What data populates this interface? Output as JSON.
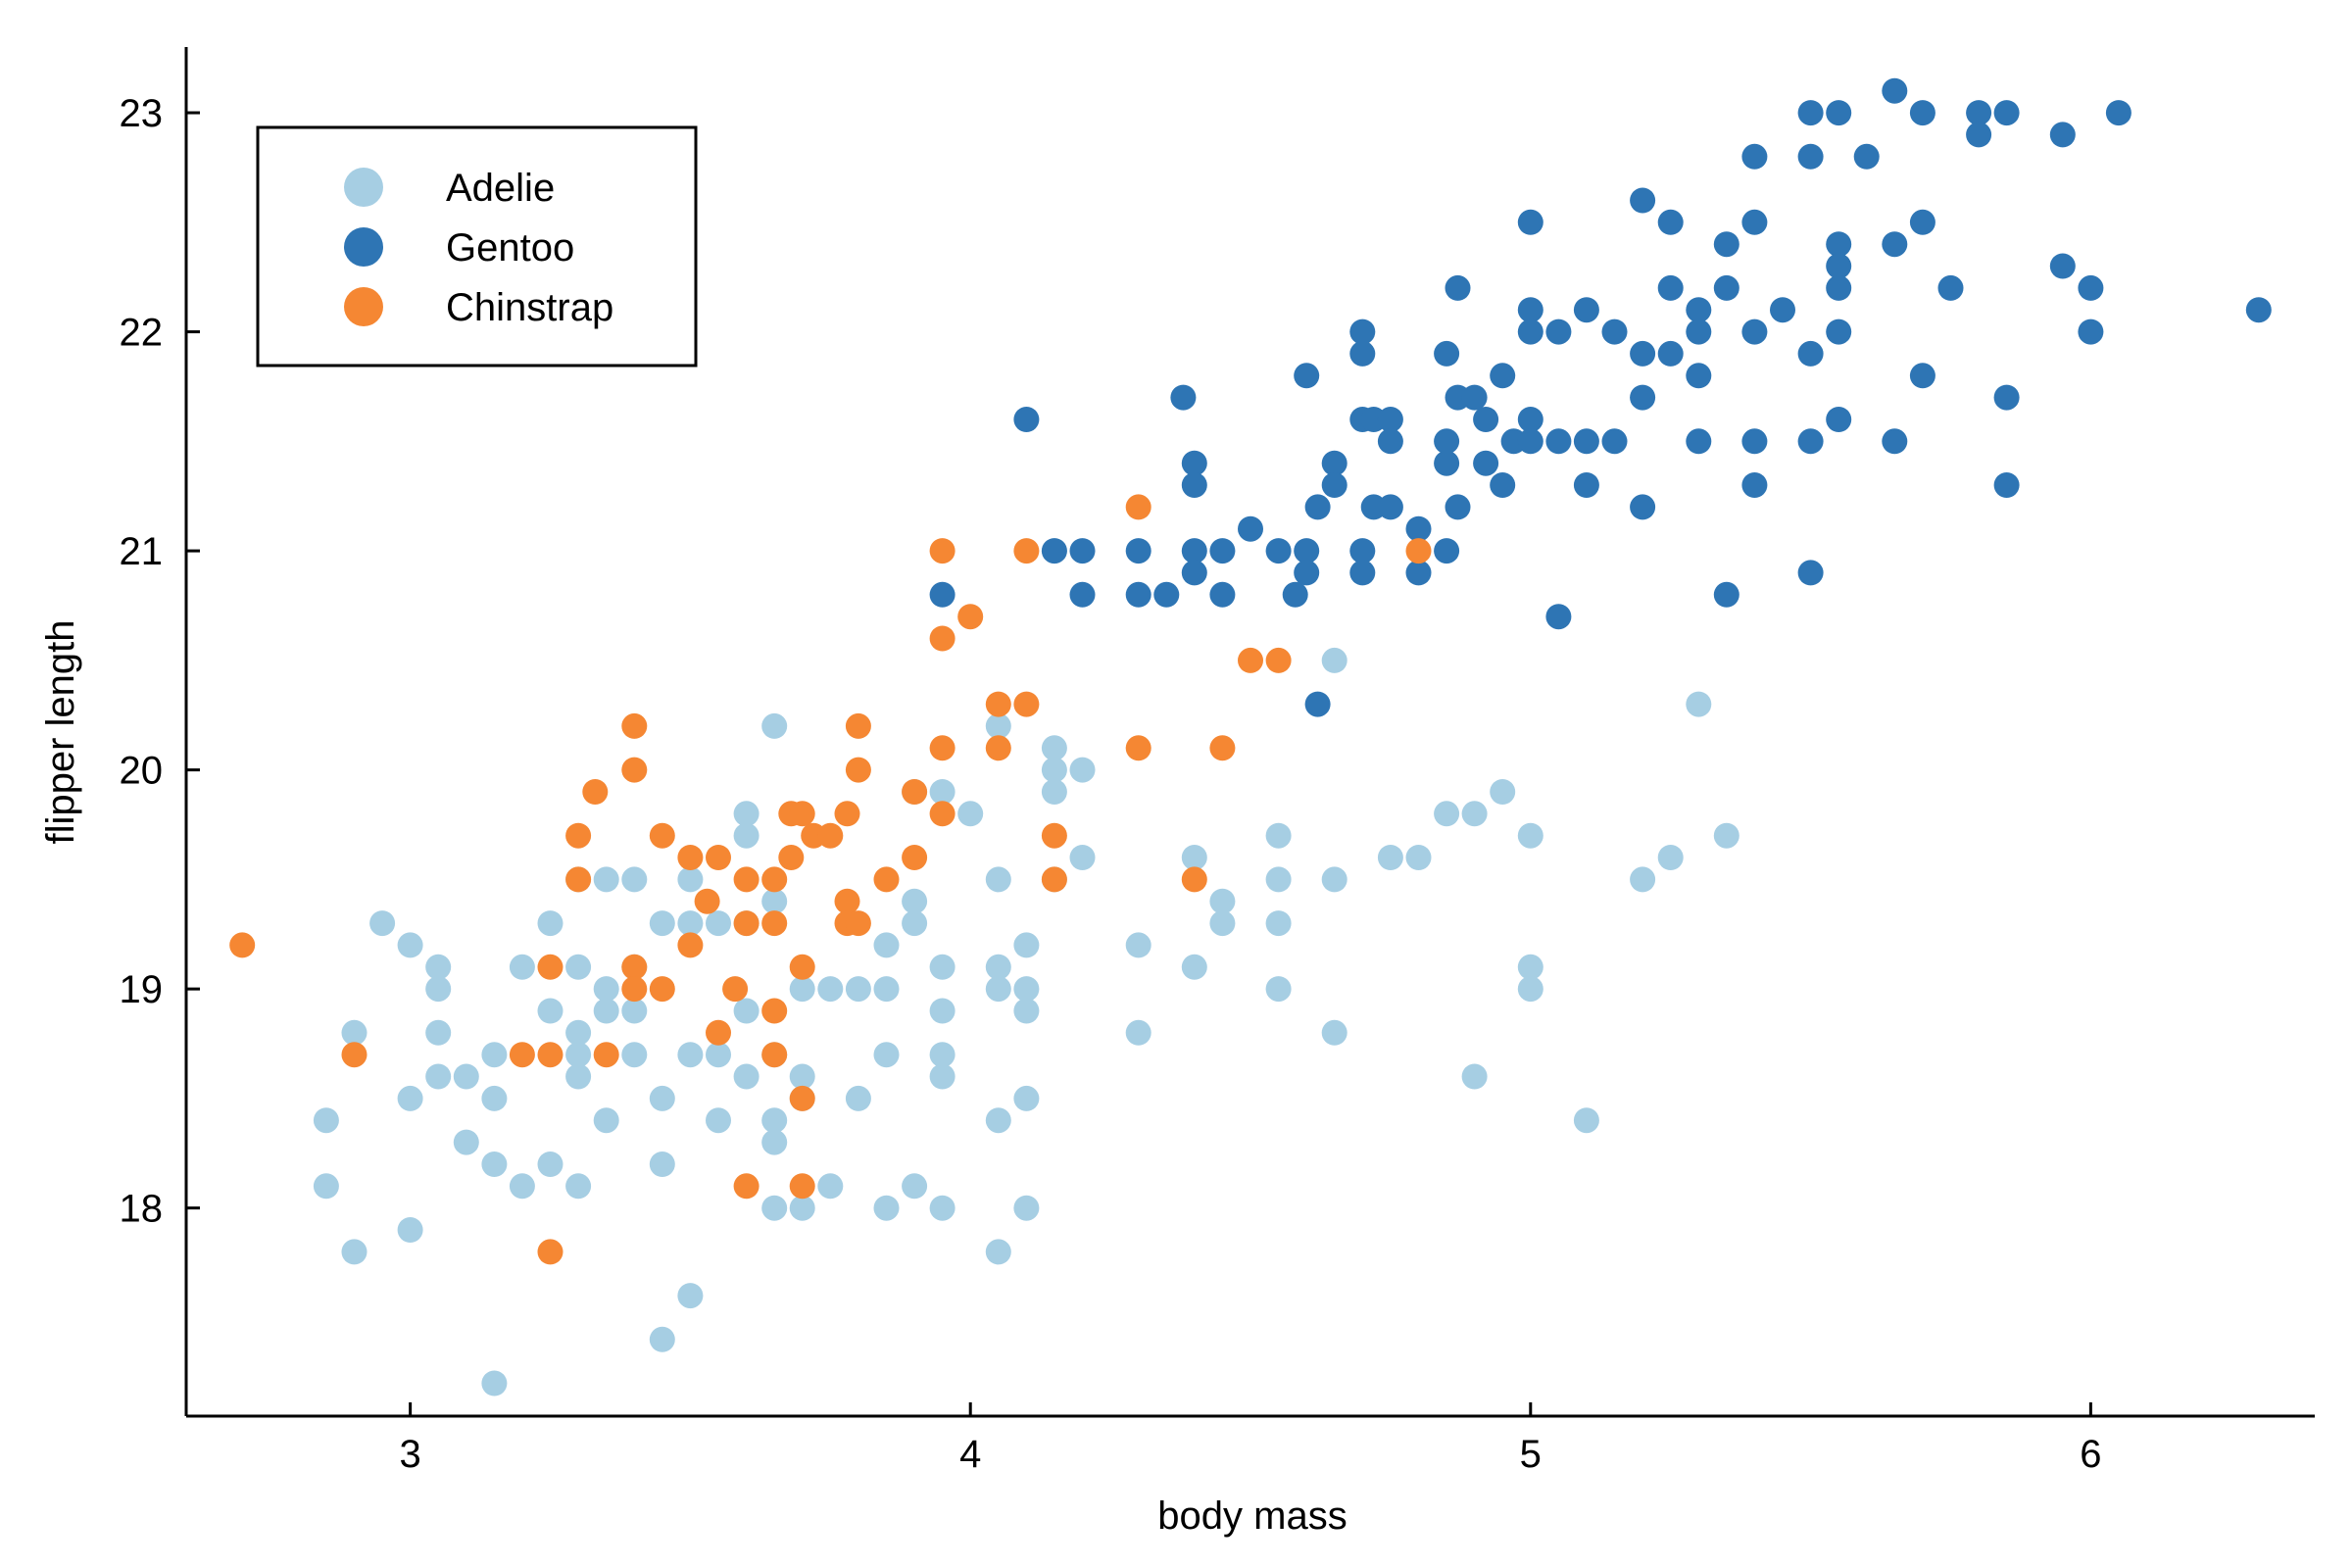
{
  "chart_data": {
    "type": "scatter",
    "xlabel": "body mass",
    "ylabel": "flipper length",
    "xlim": [
      2.6,
      6.4
    ],
    "ylim": [
      17.05,
      23.3
    ],
    "xticks": [
      3,
      4,
      5,
      6
    ],
    "yticks": [
      18,
      19,
      20,
      21,
      22,
      23
    ],
    "grid": false,
    "legend_position": "top-left",
    "series": [
      {
        "name": "Adelie",
        "color": "#a6cee3",
        "points": [
          [
            2.85,
            18.4
          ],
          [
            2.85,
            18.1
          ],
          [
            2.9,
            18.8
          ],
          [
            2.9,
            17.8
          ],
          [
            2.95,
            19.3
          ],
          [
            3.0,
            17.9
          ],
          [
            3.0,
            19.2
          ],
          [
            3.0,
            18.5
          ],
          [
            3.05,
            19.1
          ],
          [
            3.05,
            19.0
          ],
          [
            3.05,
            18.8
          ],
          [
            3.05,
            18.6
          ],
          [
            3.1,
            18.6
          ],
          [
            3.1,
            18.3
          ],
          [
            3.15,
            18.7
          ],
          [
            3.15,
            18.5
          ],
          [
            3.15,
            18.2
          ],
          [
            3.15,
            17.2
          ],
          [
            3.2,
            19.1
          ],
          [
            3.2,
            18.1
          ],
          [
            3.25,
            19.3
          ],
          [
            3.25,
            18.9
          ],
          [
            3.25,
            18.2
          ],
          [
            3.3,
            19.5
          ],
          [
            3.3,
            19.1
          ],
          [
            3.3,
            18.7
          ],
          [
            3.3,
            18.6
          ],
          [
            3.3,
            18.8
          ],
          [
            3.3,
            18.1
          ],
          [
            3.35,
            19.5
          ],
          [
            3.35,
            19.0
          ],
          [
            3.35,
            18.9
          ],
          [
            3.35,
            18.4
          ],
          [
            3.4,
            19.5
          ],
          [
            3.4,
            19.1
          ],
          [
            3.4,
            18.9
          ],
          [
            3.4,
            18.7
          ],
          [
            3.45,
            19.3
          ],
          [
            3.45,
            18.5
          ],
          [
            3.45,
            18.2
          ],
          [
            3.45,
            17.4
          ],
          [
            3.5,
            19.5
          ],
          [
            3.5,
            19.3
          ],
          [
            3.5,
            18.7
          ],
          [
            3.5,
            17.6
          ],
          [
            3.55,
            19.3
          ],
          [
            3.55,
            18.4
          ],
          [
            3.55,
            18.7
          ],
          [
            3.6,
            19.8
          ],
          [
            3.6,
            19.7
          ],
          [
            3.6,
            19.3
          ],
          [
            3.6,
            18.9
          ],
          [
            3.6,
            18.6
          ],
          [
            3.65,
            20.2
          ],
          [
            3.65,
            19.4
          ],
          [
            3.65,
            18.7
          ],
          [
            3.65,
            18.4
          ],
          [
            3.65,
            18.3
          ],
          [
            3.65,
            18.0
          ],
          [
            3.7,
            19.0
          ],
          [
            3.7,
            18.6
          ],
          [
            3.7,
            18.5
          ],
          [
            3.7,
            18.0
          ],
          [
            3.75,
            18.1
          ],
          [
            3.75,
            19.0
          ],
          [
            3.8,
            19.0
          ],
          [
            3.8,
            18.5
          ],
          [
            3.85,
            19.2
          ],
          [
            3.85,
            19.0
          ],
          [
            3.85,
            18.7
          ],
          [
            3.85,
            18.0
          ],
          [
            3.9,
            19.9
          ],
          [
            3.9,
            19.3
          ],
          [
            3.9,
            19.4
          ],
          [
            3.9,
            18.1
          ],
          [
            3.95,
            19.9
          ],
          [
            3.95,
            19.1
          ],
          [
            3.95,
            18.9
          ],
          [
            3.95,
            18.7
          ],
          [
            3.95,
            18.6
          ],
          [
            3.95,
            18.0
          ],
          [
            4.0,
            19.8
          ],
          [
            4.05,
            20.2
          ],
          [
            4.05,
            19.5
          ],
          [
            4.05,
            19.1
          ],
          [
            4.05,
            19.0
          ],
          [
            4.05,
            18.4
          ],
          [
            4.05,
            17.8
          ],
          [
            4.1,
            19.2
          ],
          [
            4.1,
            19.0
          ],
          [
            4.1,
            18.9
          ],
          [
            4.1,
            18.5
          ],
          [
            4.1,
            18.0
          ],
          [
            4.15,
            21.0
          ],
          [
            4.15,
            20.0
          ],
          [
            4.15,
            20.1
          ],
          [
            4.15,
            19.9
          ],
          [
            4.15,
            19.5
          ],
          [
            4.2,
            20.0
          ],
          [
            4.2,
            19.6
          ],
          [
            4.3,
            19.2
          ],
          [
            4.3,
            18.8
          ],
          [
            4.4,
            19.6
          ],
          [
            4.4,
            19.1
          ],
          [
            4.45,
            19.4
          ],
          [
            4.45,
            19.3
          ],
          [
            4.55,
            19.7
          ],
          [
            4.55,
            19.5
          ],
          [
            4.55,
            19.3
          ],
          [
            4.55,
            19.0
          ],
          [
            4.65,
            20.5
          ],
          [
            4.65,
            19.5
          ],
          [
            4.65,
            18.8
          ],
          [
            4.75,
            19.6
          ],
          [
            4.8,
            19.6
          ],
          [
            4.85,
            19.8
          ],
          [
            4.9,
            19.8
          ],
          [
            4.9,
            18.6
          ],
          [
            4.95,
            19.9
          ],
          [
            5.0,
            19.7
          ],
          [
            5.0,
            19.1
          ],
          [
            5.0,
            19.0
          ],
          [
            5.1,
            18.4
          ],
          [
            5.2,
            19.5
          ],
          [
            5.25,
            19.6
          ],
          [
            5.3,
            20.3
          ],
          [
            5.35,
            19.7
          ]
        ]
      },
      {
        "name": "Gentoo",
        "color": "#2e75b4",
        "points": [
          [
            3.95,
            20.8
          ],
          [
            4.1,
            21.6
          ],
          [
            4.15,
            21.0
          ],
          [
            4.2,
            21.0
          ],
          [
            4.2,
            20.8
          ],
          [
            4.3,
            21.0
          ],
          [
            4.3,
            20.8
          ],
          [
            4.35,
            20.8
          ],
          [
            4.38,
            21.7
          ],
          [
            4.4,
            21.4
          ],
          [
            4.4,
            21.3
          ],
          [
            4.4,
            21.0
          ],
          [
            4.4,
            20.9
          ],
          [
            4.45,
            21.0
          ],
          [
            4.45,
            20.8
          ],
          [
            4.5,
            21.1
          ],
          [
            4.55,
            21.0
          ],
          [
            4.58,
            20.8
          ],
          [
            4.6,
            21.8
          ],
          [
            4.6,
            21.0
          ],
          [
            4.6,
            20.9
          ],
          [
            4.62,
            20.3
          ],
          [
            4.62,
            21.2
          ],
          [
            4.65,
            21.4
          ],
          [
            4.65,
            21.3
          ],
          [
            4.7,
            22.0
          ],
          [
            4.7,
            21.9
          ],
          [
            4.7,
            21.6
          ],
          [
            4.7,
            21.0
          ],
          [
            4.7,
            20.9
          ],
          [
            4.72,
            21.6
          ],
          [
            4.72,
            21.2
          ],
          [
            4.75,
            21.6
          ],
          [
            4.75,
            21.5
          ],
          [
            4.75,
            21.2
          ],
          [
            4.8,
            21.1
          ],
          [
            4.8,
            20.9
          ],
          [
            4.85,
            21.9
          ],
          [
            4.85,
            21.5
          ],
          [
            4.85,
            21.4
          ],
          [
            4.85,
            21.0
          ],
          [
            4.87,
            22.2
          ],
          [
            4.87,
            21.7
          ],
          [
            4.87,
            21.2
          ],
          [
            4.9,
            21.7
          ],
          [
            4.92,
            21.6
          ],
          [
            4.92,
            21.4
          ],
          [
            4.95,
            21.8
          ],
          [
            4.95,
            21.3
          ],
          [
            4.97,
            21.5
          ],
          [
            5.0,
            22.5
          ],
          [
            5.0,
            22.1
          ],
          [
            5.0,
            22.0
          ],
          [
            5.0,
            21.6
          ],
          [
            5.0,
            21.5
          ],
          [
            5.05,
            22.0
          ],
          [
            5.05,
            21.5
          ],
          [
            5.05,
            20.7
          ],
          [
            5.1,
            22.1
          ],
          [
            5.1,
            21.5
          ],
          [
            5.1,
            21.3
          ],
          [
            5.15,
            22.0
          ],
          [
            5.15,
            21.5
          ],
          [
            5.2,
            22.6
          ],
          [
            5.2,
            21.9
          ],
          [
            5.2,
            21.7
          ],
          [
            5.2,
            21.2
          ],
          [
            5.25,
            22.5
          ],
          [
            5.25,
            22.2
          ],
          [
            5.25,
            21.9
          ],
          [
            5.3,
            22.1
          ],
          [
            5.3,
            22.0
          ],
          [
            5.3,
            21.8
          ],
          [
            5.3,
            21.5
          ],
          [
            5.35,
            22.4
          ],
          [
            5.35,
            22.2
          ],
          [
            5.35,
            20.8
          ],
          [
            5.4,
            22.8
          ],
          [
            5.4,
            22.5
          ],
          [
            5.4,
            22.0
          ],
          [
            5.4,
            21.5
          ],
          [
            5.4,
            21.3
          ],
          [
            5.45,
            22.1
          ],
          [
            5.5,
            23.0
          ],
          [
            5.5,
            22.8
          ],
          [
            5.5,
            21.9
          ],
          [
            5.5,
            21.5
          ],
          [
            5.5,
            20.9
          ],
          [
            5.55,
            23.0
          ],
          [
            5.55,
            22.4
          ],
          [
            5.55,
            22.3
          ],
          [
            5.55,
            22.2
          ],
          [
            5.55,
            22.0
          ],
          [
            5.55,
            21.6
          ],
          [
            5.6,
            22.8
          ],
          [
            5.65,
            23.1
          ],
          [
            5.65,
            22.4
          ],
          [
            5.65,
            21.5
          ],
          [
            5.7,
            23.0
          ],
          [
            5.7,
            22.5
          ],
          [
            5.7,
            21.8
          ],
          [
            5.75,
            22.2
          ],
          [
            5.8,
            23.0
          ],
          [
            5.8,
            22.9
          ],
          [
            5.85,
            23.0
          ],
          [
            5.85,
            21.7
          ],
          [
            5.85,
            21.3
          ],
          [
            5.95,
            22.9
          ],
          [
            5.95,
            22.3
          ],
          [
            6.0,
            22.2
          ],
          [
            6.0,
            22.0
          ],
          [
            6.05,
            23.0
          ],
          [
            6.3,
            22.1
          ]
        ]
      },
      {
        "name": "Chinstrap",
        "color": "#f58733",
        "points": [
          [
            2.7,
            19.2
          ],
          [
            2.9,
            18.7
          ],
          [
            3.2,
            18.7
          ],
          [
            3.25,
            19.1
          ],
          [
            3.25,
            18.7
          ],
          [
            3.25,
            17.8
          ],
          [
            3.3,
            19.7
          ],
          [
            3.3,
            19.5
          ],
          [
            3.33,
            19.9
          ],
          [
            3.35,
            18.7
          ],
          [
            3.4,
            20.2
          ],
          [
            3.4,
            20.0
          ],
          [
            3.4,
            19.1
          ],
          [
            3.4,
            19.0
          ],
          [
            3.45,
            19.7
          ],
          [
            3.45,
            19.0
          ],
          [
            3.5,
            19.6
          ],
          [
            3.5,
            19.2
          ],
          [
            3.53,
            19.4
          ],
          [
            3.55,
            19.6
          ],
          [
            3.55,
            18.8
          ],
          [
            3.58,
            19.0
          ],
          [
            3.6,
            19.5
          ],
          [
            3.6,
            19.3
          ],
          [
            3.6,
            18.1
          ],
          [
            3.65,
            19.5
          ],
          [
            3.65,
            19.3
          ],
          [
            3.65,
            18.9
          ],
          [
            3.65,
            18.7
          ],
          [
            3.68,
            19.6
          ],
          [
            3.68,
            19.8
          ],
          [
            3.7,
            19.8
          ],
          [
            3.7,
            19.1
          ],
          [
            3.7,
            18.5
          ],
          [
            3.7,
            18.1
          ],
          [
            3.72,
            19.7
          ],
          [
            3.75,
            19.7
          ],
          [
            3.78,
            19.8
          ],
          [
            3.78,
            19.4
          ],
          [
            3.78,
            19.3
          ],
          [
            3.8,
            20.2
          ],
          [
            3.8,
            20.0
          ],
          [
            3.8,
            19.3
          ],
          [
            3.85,
            19.5
          ],
          [
            3.9,
            19.9
          ],
          [
            3.9,
            19.6
          ],
          [
            3.95,
            21.0
          ],
          [
            3.95,
            20.6
          ],
          [
            3.95,
            20.1
          ],
          [
            3.95,
            19.8
          ],
          [
            4.0,
            20.7
          ],
          [
            4.05,
            20.3
          ],
          [
            4.05,
            20.1
          ],
          [
            4.1,
            21.0
          ],
          [
            4.1,
            20.3
          ],
          [
            4.15,
            19.7
          ],
          [
            4.15,
            19.5
          ],
          [
            4.3,
            21.2
          ],
          [
            4.3,
            20.1
          ],
          [
            4.4,
            19.5
          ],
          [
            4.45,
            20.1
          ],
          [
            4.5,
            20.5
          ],
          [
            4.55,
            20.5
          ],
          [
            4.8,
            21.0
          ]
        ]
      }
    ]
  }
}
